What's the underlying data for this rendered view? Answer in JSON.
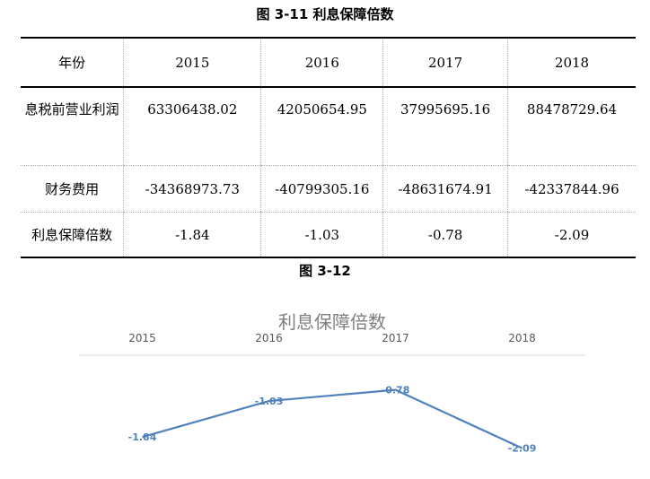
{
  "table_caption": "图 3-11 利息保障倍数",
  "chart_caption": "图 3-12",
  "table": {
    "header": [
      "年份",
      "2015",
      "2016",
      "2017",
      "2018"
    ],
    "rows": [
      [
        "息税前营业利润",
        "63306438.02",
        "42050654.95",
        "37995695.16",
        "88478729.64"
      ],
      [
        "财务费用",
        "-34368973.73",
        "-40799305.16",
        "-48631674.91",
        "-42337844.96"
      ],
      [
        "利息保障倍数",
        "-1.84",
        "-1.03",
        "-0.78",
        "-2.09"
      ]
    ]
  },
  "chart_data": {
    "type": "line",
    "title": "利息保障倍数",
    "categories": [
      "2015",
      "2016",
      "2017",
      "2018"
    ],
    "series": [
      {
        "values": [
          -1.84,
          -1.03,
          -0.78,
          -2.09
        ],
        "labels": [
          "-1.84",
          "-1.03",
          "-0.78",
          "-2.09"
        ]
      }
    ],
    "xaxis_position": "top",
    "ylim": [
      -2.3,
      0
    ],
    "grid": false,
    "line_color": "#4f81bd"
  }
}
